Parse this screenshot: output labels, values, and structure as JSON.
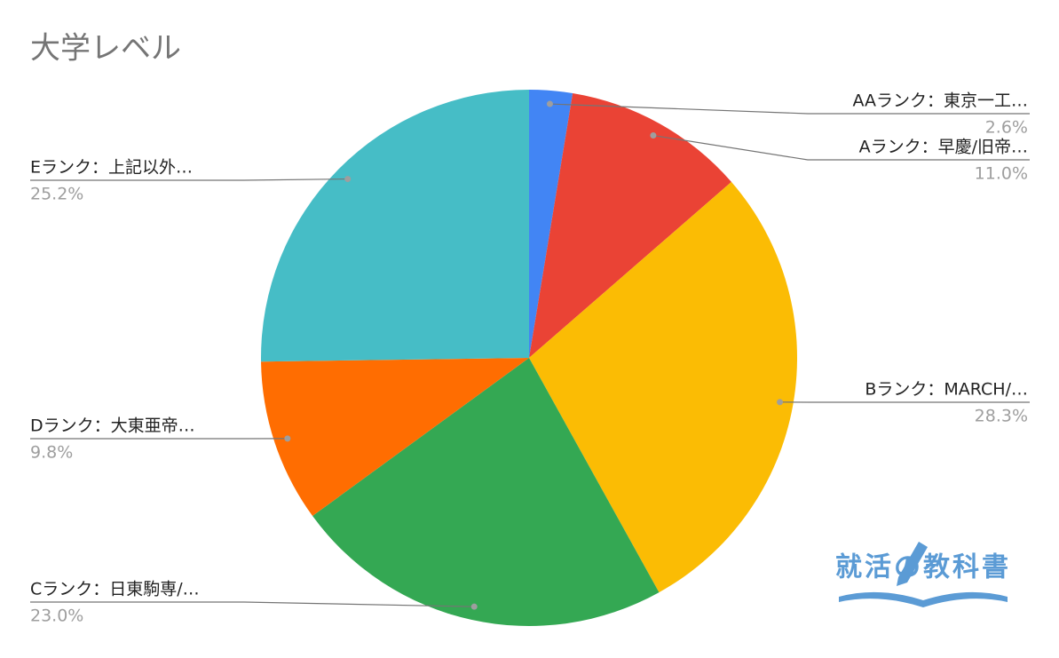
{
  "chart_data": {
    "type": "pie",
    "title": "大学レベル",
    "categories": [
      "AAランク：東京一工…",
      "Aランク：早慶/旧帝…",
      "Bランク：MARCH/…",
      "Cランク：日東駒専/…",
      "Dランク：大東亜帝…",
      "Eランク：上記以外…"
    ],
    "values": [
      2.6,
      11.0,
      28.3,
      23.0,
      9.8,
      25.2
    ],
    "value_labels": [
      "2.6%",
      "11.0%",
      "28.3%",
      "23.0%",
      "9.8%",
      "25.2%"
    ],
    "colors": [
      "#4285f4",
      "#ea4335",
      "#fbbc04",
      "#34a853",
      "#ff6d01",
      "#46bdc6"
    ]
  },
  "watermark": "就活の教科書"
}
